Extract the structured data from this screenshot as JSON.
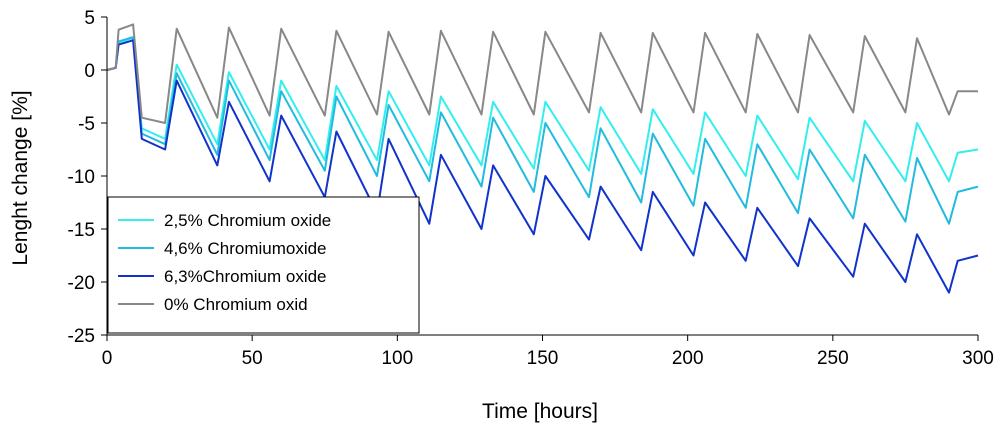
{
  "chart_data": {
    "type": "line",
    "title": "",
    "xlabel": "Time [hours]",
    "ylabel": "Lenght change [%]",
    "xlim": [
      0,
      300
    ],
    "ylim": [
      -25,
      5
    ],
    "xticks": [
      0,
      50,
      100,
      150,
      200,
      250,
      300
    ],
    "yticks": [
      5,
      0,
      -5,
      -10,
      -15,
      -20,
      -25
    ],
    "grid": false,
    "legend_position": "lower-left",
    "cycle_period_hours": 18.2,
    "series": [
      {
        "name": "2,5% Chromium oxide",
        "color": "#33eeee",
        "values": [
          {
            "x": 0,
            "y": 0
          },
          {
            "x": 3,
            "y": 0.2
          },
          {
            "x": 4,
            "y": 2.6
          },
          {
            "x": 9,
            "y": 3.0
          },
          {
            "x": 12,
            "y": -5.5
          },
          {
            "x": 20,
            "y": -6.5
          },
          {
            "x": 24,
            "y": 0.5
          },
          {
            "x": 38,
            "y": -7.0
          },
          {
            "x": 42,
            "y": -0.2
          },
          {
            "x": 56,
            "y": -7.5
          },
          {
            "x": 60,
            "y": -1.0
          },
          {
            "x": 75,
            "y": -8.5
          },
          {
            "x": 79,
            "y": -1.5
          },
          {
            "x": 93,
            "y": -8.5
          },
          {
            "x": 97,
            "y": -2.0
          },
          {
            "x": 111,
            "y": -9.0
          },
          {
            "x": 115,
            "y": -2.5
          },
          {
            "x": 129,
            "y": -9.0
          },
          {
            "x": 133,
            "y": -3.0
          },
          {
            "x": 147,
            "y": -9.3
          },
          {
            "x": 151,
            "y": -3.0
          },
          {
            "x": 166,
            "y": -9.5
          },
          {
            "x": 170,
            "y": -3.5
          },
          {
            "x": 184,
            "y": -9.8
          },
          {
            "x": 188,
            "y": -3.7
          },
          {
            "x": 202,
            "y": -9.8
          },
          {
            "x": 206,
            "y": -4.0
          },
          {
            "x": 220,
            "y": -10.0
          },
          {
            "x": 224,
            "y": -4.3
          },
          {
            "x": 238,
            "y": -10.3
          },
          {
            "x": 242,
            "y": -4.5
          },
          {
            "x": 257,
            "y": -10.5
          },
          {
            "x": 261,
            "y": -4.8
          },
          {
            "x": 275,
            "y": -10.5
          },
          {
            "x": 279,
            "y": -5.0
          },
          {
            "x": 290,
            "y": -10.5
          },
          {
            "x": 293,
            "y": -7.8
          },
          {
            "x": 300,
            "y": -7.5
          }
        ]
      },
      {
        "name": "4,6% Chromiumoxide",
        "color": "#22bbe0",
        "values": [
          {
            "x": 0,
            "y": 0
          },
          {
            "x": 3,
            "y": 0.2
          },
          {
            "x": 4,
            "y": 2.7
          },
          {
            "x": 9,
            "y": 3.1
          },
          {
            "x": 12,
            "y": -6.0
          },
          {
            "x": 20,
            "y": -7.0
          },
          {
            "x": 24,
            "y": -0.3
          },
          {
            "x": 38,
            "y": -8.0
          },
          {
            "x": 42,
            "y": -1.0
          },
          {
            "x": 56,
            "y": -8.5
          },
          {
            "x": 60,
            "y": -2.0
          },
          {
            "x": 75,
            "y": -9.5
          },
          {
            "x": 79,
            "y": -2.5
          },
          {
            "x": 93,
            "y": -10.0
          },
          {
            "x": 97,
            "y": -3.3
          },
          {
            "x": 111,
            "y": -10.5
          },
          {
            "x": 115,
            "y": -4.0
          },
          {
            "x": 129,
            "y": -11.0
          },
          {
            "x": 133,
            "y": -4.5
          },
          {
            "x": 147,
            "y": -11.5
          },
          {
            "x": 151,
            "y": -5.0
          },
          {
            "x": 166,
            "y": -12.0
          },
          {
            "x": 170,
            "y": -5.5
          },
          {
            "x": 184,
            "y": -12.5
          },
          {
            "x": 188,
            "y": -6.0
          },
          {
            "x": 202,
            "y": -12.8
          },
          {
            "x": 206,
            "y": -6.5
          },
          {
            "x": 220,
            "y": -13.0
          },
          {
            "x": 224,
            "y": -7.0
          },
          {
            "x": 238,
            "y": -13.5
          },
          {
            "x": 242,
            "y": -7.5
          },
          {
            "x": 257,
            "y": -14.0
          },
          {
            "x": 261,
            "y": -8.0
          },
          {
            "x": 275,
            "y": -14.3
          },
          {
            "x": 279,
            "y": -8.3
          },
          {
            "x": 290,
            "y": -14.5
          },
          {
            "x": 293,
            "y": -11.5
          },
          {
            "x": 300,
            "y": -11.0
          }
        ]
      },
      {
        "name": "6,3%Chromium oxide",
        "color": "#1133cc",
        "values": [
          {
            "x": 0,
            "y": 0
          },
          {
            "x": 3,
            "y": 0.2
          },
          {
            "x": 4,
            "y": 2.4
          },
          {
            "x": 9,
            "y": 2.8
          },
          {
            "x": 12,
            "y": -6.5
          },
          {
            "x": 20,
            "y": -7.5
          },
          {
            "x": 24,
            "y": -1.0
          },
          {
            "x": 38,
            "y": -9.0
          },
          {
            "x": 42,
            "y": -3.0
          },
          {
            "x": 56,
            "y": -10.5
          },
          {
            "x": 60,
            "y": -4.3
          },
          {
            "x": 75,
            "y": -12.0
          },
          {
            "x": 79,
            "y": -5.8
          },
          {
            "x": 93,
            "y": -13.5
          },
          {
            "x": 97,
            "y": -6.5
          },
          {
            "x": 111,
            "y": -14.5
          },
          {
            "x": 115,
            "y": -8.0
          },
          {
            "x": 129,
            "y": -15.0
          },
          {
            "x": 133,
            "y": -9.0
          },
          {
            "x": 147,
            "y": -15.5
          },
          {
            "x": 151,
            "y": -10.0
          },
          {
            "x": 166,
            "y": -16.0
          },
          {
            "x": 170,
            "y": -11.0
          },
          {
            "x": 184,
            "y": -17.0
          },
          {
            "x": 188,
            "y": -11.5
          },
          {
            "x": 202,
            "y": -17.5
          },
          {
            "x": 206,
            "y": -12.5
          },
          {
            "x": 220,
            "y": -18.0
          },
          {
            "x": 224,
            "y": -13.0
          },
          {
            "x": 238,
            "y": -18.5
          },
          {
            "x": 242,
            "y": -14.0
          },
          {
            "x": 257,
            "y": -19.5
          },
          {
            "x": 261,
            "y": -14.5
          },
          {
            "x": 275,
            "y": -20.0
          },
          {
            "x": 279,
            "y": -15.5
          },
          {
            "x": 290,
            "y": -21.0
          },
          {
            "x": 293,
            "y": -18.0
          },
          {
            "x": 300,
            "y": -17.5
          }
        ]
      },
      {
        "name": "0% Chromium oxid",
        "color": "#888888",
        "values": [
          {
            "x": 0,
            "y": 0
          },
          {
            "x": 3,
            "y": 0.2
          },
          {
            "x": 4,
            "y": 3.8
          },
          {
            "x": 9,
            "y": 4.3
          },
          {
            "x": 12,
            "y": -4.5
          },
          {
            "x": 20,
            "y": -5.0
          },
          {
            "x": 24,
            "y": 3.9
          },
          {
            "x": 38,
            "y": -4.5
          },
          {
            "x": 42,
            "y": 4.0
          },
          {
            "x": 56,
            "y": -4.3
          },
          {
            "x": 60,
            "y": 3.9
          },
          {
            "x": 75,
            "y": -4.3
          },
          {
            "x": 79,
            "y": 3.7
          },
          {
            "x": 93,
            "y": -4.2
          },
          {
            "x": 97,
            "y": 3.6
          },
          {
            "x": 111,
            "y": -4.2
          },
          {
            "x": 115,
            "y": 3.7
          },
          {
            "x": 129,
            "y": -4.2
          },
          {
            "x": 133,
            "y": 3.6
          },
          {
            "x": 147,
            "y": -4.2
          },
          {
            "x": 151,
            "y": 3.6
          },
          {
            "x": 166,
            "y": -4.0
          },
          {
            "x": 170,
            "y": 3.5
          },
          {
            "x": 184,
            "y": -4.0
          },
          {
            "x": 188,
            "y": 3.5
          },
          {
            "x": 202,
            "y": -4.0
          },
          {
            "x": 206,
            "y": 3.5
          },
          {
            "x": 220,
            "y": -4.0
          },
          {
            "x": 224,
            "y": 3.4
          },
          {
            "x": 238,
            "y": -4.0
          },
          {
            "x": 242,
            "y": 3.3
          },
          {
            "x": 257,
            "y": -4.0
          },
          {
            "x": 261,
            "y": 3.2
          },
          {
            "x": 275,
            "y": -4.0
          },
          {
            "x": 279,
            "y": 3.0
          },
          {
            "x": 290,
            "y": -4.2
          },
          {
            "x": 293,
            "y": -2.0
          },
          {
            "x": 300,
            "y": -2.0
          }
        ]
      }
    ]
  }
}
